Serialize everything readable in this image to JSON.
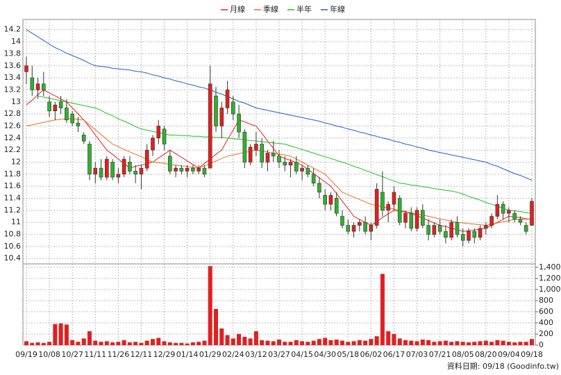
{
  "chart_data": {
    "type": "candlestick",
    "source": "資料日期: 09/18 (Goodinfo.tw)",
    "up_color": "#e02020",
    "down_color": "#30b030",
    "grid": true,
    "ylim": [
      10.31,
      14.37
    ],
    "yticks": [
      10.4,
      10.6,
      10.8,
      11,
      11.2,
      11.4,
      11.6,
      11.8,
      12,
      12.2,
      12.4,
      12.6,
      12.8,
      13,
      13.2,
      13.4,
      13.6,
      13.8,
      14,
      14.2
    ],
    "y2lim": [
      0,
      1460
    ],
    "y2ticks": [
      0,
      200,
      400,
      600,
      800,
      {
        "value": 1000,
        "label": "1,000"
      },
      {
        "value": 1200,
        "label": "1,200"
      },
      {
        "value": 1400,
        "label": "1,400"
      }
    ],
    "x": [
      "09/19",
      null,
      null,
      null,
      "10/08",
      null,
      null,
      null,
      "10/27",
      null,
      null,
      null,
      "11/11",
      null,
      null,
      null,
      "11/26",
      null,
      null,
      null,
      "12/11",
      null,
      null,
      null,
      "12/29",
      null,
      null,
      null,
      "01/14",
      null,
      null,
      null,
      "01/29",
      null,
      null,
      null,
      "02/24",
      null,
      null,
      null,
      "03/12",
      null,
      null,
      null,
      "03/27",
      null,
      null,
      null,
      "04/15",
      null,
      null,
      null,
      "04/30",
      null,
      null,
      null,
      "05/18",
      null,
      null,
      null,
      "06/02",
      null,
      null,
      null,
      "06/17",
      null,
      null,
      null,
      "07/03",
      null,
      null,
      null,
      "07/21",
      null,
      null,
      null,
      "08/05",
      null,
      null,
      null,
      "08/20",
      null,
      null,
      null,
      "09/04",
      null,
      null,
      null,
      "09/18"
    ],
    "ohlc": [
      [
        13.5,
        13.75,
        13.3,
        13.6
      ],
      [
        13.4,
        13.6,
        13.1,
        13.2
      ],
      [
        13.2,
        13.4,
        13.05,
        13.3
      ],
      [
        13.3,
        13.5,
        13.1,
        13.2
      ],
      [
        13.0,
        13.1,
        12.75,
        12.85
      ],
      [
        12.85,
        13.0,
        12.7,
        12.95
      ],
      [
        13.0,
        13.1,
        12.8,
        12.9
      ],
      [
        12.9,
        13.05,
        12.65,
        12.7
      ],
      [
        12.8,
        12.85,
        12.6,
        12.65
      ],
      [
        12.65,
        12.75,
        12.5,
        12.6
      ],
      [
        12.45,
        12.5,
        12.3,
        12.35
      ],
      [
        12.3,
        12.35,
        11.7,
        11.8
      ],
      [
        11.8,
        12.0,
        11.65,
        11.9
      ],
      [
        11.9,
        12.05,
        11.7,
        11.75
      ],
      [
        11.75,
        12.1,
        11.7,
        12.05
      ],
      [
        12.0,
        12.05,
        11.7,
        11.75
      ],
      [
        11.75,
        11.9,
        11.65,
        11.8
      ],
      [
        11.8,
        12.1,
        11.75,
        12.05
      ],
      [
        12.0,
        12.1,
        11.8,
        11.85
      ],
      [
        11.85,
        11.95,
        11.65,
        11.8
      ],
      [
        11.8,
        11.95,
        11.55,
        11.9
      ],
      [
        11.9,
        12.3,
        11.85,
        12.2
      ],
      [
        12.2,
        12.45,
        12.1,
        12.4
      ],
      [
        12.4,
        12.7,
        12.3,
        12.6
      ],
      [
        12.55,
        12.6,
        12.2,
        12.3
      ],
      [
        12.1,
        12.2,
        11.8,
        11.85
      ],
      [
        11.85,
        11.95,
        11.75,
        11.9
      ],
      [
        11.9,
        11.95,
        11.8,
        11.85
      ],
      [
        11.85,
        11.95,
        11.75,
        11.9
      ],
      [
        11.9,
        11.95,
        11.8,
        11.85
      ],
      [
        11.85,
        11.95,
        11.8,
        11.9
      ],
      [
        11.9,
        11.95,
        11.75,
        11.8
      ],
      [
        11.9,
        13.6,
        11.9,
        13.3
      ],
      [
        13.1,
        13.25,
        12.5,
        12.6
      ],
      [
        12.6,
        13.0,
        12.4,
        12.9
      ],
      [
        12.9,
        13.35,
        12.8,
        13.2
      ],
      [
        13.0,
        13.1,
        12.7,
        12.8
      ],
      [
        12.8,
        12.95,
        12.4,
        12.5
      ],
      [
        12.5,
        12.55,
        11.9,
        12.0
      ],
      [
        12.0,
        12.3,
        11.95,
        12.25
      ],
      [
        12.2,
        12.5,
        12.1,
        12.3
      ],
      [
        12.3,
        12.4,
        11.9,
        12.0
      ],
      [
        12.0,
        12.2,
        11.85,
        12.15
      ],
      [
        12.15,
        12.35,
        12.0,
        12.1
      ],
      [
        12.1,
        12.2,
        11.9,
        12.0
      ],
      [
        12.0,
        12.1,
        11.85,
        11.95
      ],
      [
        11.95,
        12.05,
        11.75,
        12.0
      ],
      [
        12.0,
        12.1,
        11.8,
        11.85
      ],
      [
        11.85,
        11.95,
        11.7,
        11.9
      ],
      [
        11.9,
        11.95,
        11.75,
        11.8
      ],
      [
        11.8,
        11.9,
        11.6,
        11.65
      ],
      [
        11.65,
        11.75,
        11.4,
        11.5
      ],
      [
        11.45,
        11.55,
        11.2,
        11.3
      ],
      [
        11.3,
        11.5,
        11.2,
        11.45
      ],
      [
        11.4,
        11.5,
        11.1,
        11.15
      ],
      [
        11.1,
        11.2,
        10.9,
        10.95
      ],
      [
        10.95,
        11.05,
        10.8,
        10.85
      ],
      [
        10.85,
        11.0,
        10.75,
        10.95
      ],
      [
        10.95,
        11.05,
        10.85,
        11.0
      ],
      [
        11.0,
        11.1,
        10.8,
        10.85
      ],
      [
        10.85,
        11.0,
        10.7,
        10.95
      ],
      [
        10.95,
        11.65,
        10.9,
        11.55
      ],
      [
        11.5,
        11.85,
        11.1,
        11.2
      ],
      [
        11.2,
        11.35,
        11.0,
        11.3
      ],
      [
        11.3,
        11.6,
        11.2,
        11.5
      ],
      [
        11.4,
        11.45,
        10.95,
        11.0
      ],
      [
        11.0,
        11.2,
        10.9,
        11.15
      ],
      [
        11.15,
        11.25,
        10.85,
        10.9
      ],
      [
        10.9,
        11.25,
        10.85,
        11.2
      ],
      [
        11.2,
        11.3,
        10.9,
        10.95
      ],
      [
        10.95,
        11.05,
        10.7,
        10.8
      ],
      [
        10.8,
        11.0,
        10.75,
        10.95
      ],
      [
        10.95,
        11.05,
        10.8,
        10.85
      ],
      [
        10.85,
        10.95,
        10.65,
        10.75
      ],
      [
        10.75,
        11.05,
        10.7,
        11.0
      ],
      [
        11.0,
        11.1,
        10.75,
        10.8
      ],
      [
        10.8,
        10.9,
        10.6,
        10.7
      ],
      [
        10.7,
        10.9,
        10.65,
        10.85
      ],
      [
        10.85,
        10.9,
        10.65,
        10.75
      ],
      [
        10.75,
        10.95,
        10.7,
        10.9
      ],
      [
        10.9,
        11.0,
        10.8,
        10.95
      ],
      [
        10.95,
        11.15,
        10.9,
        11.1
      ],
      [
        11.1,
        11.45,
        11.05,
        11.3
      ],
      [
        11.3,
        11.35,
        11.05,
        11.15
      ],
      [
        11.15,
        11.25,
        11.0,
        11.2
      ],
      [
        11.15,
        11.2,
        11.0,
        11.05
      ],
      [
        11.05,
        11.1,
        10.95,
        11.0
      ],
      [
        10.95,
        11.0,
        10.8,
        10.85
      ],
      [
        10.95,
        11.4,
        10.95,
        11.35
      ]
    ],
    "volume": {
      "color": "#e02020",
      "values": [
        70,
        40,
        50,
        40,
        60,
        380,
        390,
        370,
        90,
        60,
        120,
        250,
        80,
        60,
        70,
        50,
        60,
        90,
        50,
        60,
        40,
        80,
        110,
        130,
        70,
        50,
        40,
        40,
        30,
        50,
        60,
        80,
        1420,
        650,
        300,
        180,
        120,
        200,
        150,
        120,
        250,
        90,
        80,
        70,
        100,
        60,
        60,
        90,
        70,
        60,
        80,
        110,
        130,
        90,
        100,
        80,
        60,
        70,
        90,
        80,
        110,
        160,
        1280,
        250,
        200,
        120,
        90,
        80,
        70,
        100,
        90,
        60,
        70,
        80,
        60,
        70,
        60,
        50,
        60,
        70,
        80,
        60,
        90,
        80,
        60,
        50,
        60,
        60,
        110
      ]
    },
    "series": [
      {
        "name": "月線",
        "color": "#e02020",
        "values": [
          12.95,
          13.03,
          13.12,
          13.2,
          13.15,
          13.1,
          13.05,
          13.0,
          12.9,
          12.8,
          12.7,
          12.58,
          12.45,
          12.33,
          12.2,
          12.13,
          12.05,
          11.98,
          11.9,
          11.93,
          11.95,
          11.98,
          12.0,
          12.07,
          12.13,
          12.2,
          12.14,
          12.08,
          12.02,
          11.96,
          11.9,
          11.98,
          12.05,
          12.13,
          12.2,
          12.37,
          12.53,
          12.7,
          12.67,
          12.63,
          12.6,
          12.48,
          12.35,
          12.23,
          12.1,
          12.06,
          12.03,
          11.99,
          11.95,
          11.88,
          11.81,
          11.74,
          11.67,
          11.6,
          11.48,
          11.35,
          11.23,
          11.1,
          11.05,
          11.0,
          10.95,
          11.01,
          11.08,
          11.14,
          11.2,
          11.18,
          11.17,
          11.15,
          11.11,
          11.07,
          11.03,
          10.99,
          10.95,
          10.93,
          10.9,
          10.88,
          10.85,
          10.86,
          10.87,
          10.89,
          10.9,
          10.95,
          11.0,
          11.05,
          11.1,
          11.09,
          11.08,
          11.06,
          11.05
        ]
      },
      {
        "name": "季線",
        "color": "#e87020",
        "values": [
          12.6,
          12.62,
          12.64,
          12.66,
          12.68,
          12.7,
          12.71,
          12.72,
          12.72,
          12.71,
          12.7,
          12.62,
          12.54,
          12.46,
          12.38,
          12.3,
          12.26,
          12.21,
          12.17,
          12.13,
          12.09,
          12.04,
          12.0,
          11.99,
          11.98,
          11.96,
          11.95,
          11.94,
          11.93,
          11.91,
          11.9,
          11.94,
          11.98,
          12.02,
          12.06,
          12.1,
          12.12,
          12.14,
          12.16,
          12.18,
          12.2,
          12.18,
          12.17,
          12.15,
          12.13,
          12.12,
          12.1,
          12.05,
          12.0,
          11.95,
          11.9,
          11.85,
          11.8,
          11.7,
          11.6,
          11.5,
          11.46,
          11.42,
          11.38,
          11.34,
          11.3,
          11.28,
          11.26,
          11.24,
          11.22,
          11.2,
          11.18,
          11.16,
          11.14,
          11.12,
          11.1,
          11.08,
          11.06,
          11.04,
          11.02,
          11.0,
          10.99,
          10.98,
          10.97,
          10.96,
          10.95,
          10.97,
          10.99,
          11.01,
          11.03,
          11.05,
          11.05,
          11.05,
          11.05
        ]
      },
      {
        "name": "半年",
        "color": "#20c020",
        "values": [
          null,
          null,
          13.1,
          13.08,
          13.06,
          13.04,
          13.02,
          13.0,
          12.98,
          12.96,
          12.94,
          12.92,
          12.9,
          12.86,
          12.81,
          12.77,
          12.72,
          12.68,
          12.64,
          12.59,
          12.55,
          12.53,
          12.51,
          12.49,
          12.47,
          12.45,
          12.45,
          12.44,
          12.44,
          12.43,
          12.43,
          12.42,
          12.42,
          12.41,
          12.41,
          12.4,
          12.39,
          12.38,
          12.37,
          12.36,
          12.35,
          12.34,
          12.33,
          12.32,
          12.31,
          12.3,
          12.27,
          12.24,
          12.21,
          12.18,
          12.15,
          12.12,
          12.09,
          12.06,
          12.03,
          12.0,
          11.97,
          11.93,
          11.9,
          11.86,
          11.83,
          11.79,
          11.76,
          11.72,
          11.69,
          11.65,
          11.64,
          11.62,
          11.61,
          11.59,
          11.58,
          11.56,
          11.55,
          11.53,
          11.52,
          11.5,
          11.47,
          11.43,
          11.4,
          11.37,
          11.33,
          11.3,
          11.27,
          11.23,
          11.2,
          11.19,
          11.18,
          11.16,
          11.15
        ]
      },
      {
        "name": "年線",
        "color": "#2060c0",
        "values": [
          14.2,
          14.14,
          14.08,
          14.02,
          13.96,
          13.9,
          13.86,
          13.81,
          13.77,
          13.73,
          13.69,
          13.64,
          13.6,
          13.59,
          13.58,
          13.56,
          13.55,
          13.54,
          13.53,
          13.51,
          13.5,
          13.48,
          13.45,
          13.43,
          13.4,
          13.38,
          13.35,
          13.33,
          13.3,
          13.28,
          13.25,
          13.23,
          13.2,
          13.16,
          13.13,
          13.09,
          13.05,
          13.01,
          12.98,
          12.94,
          12.9,
          12.88,
          12.86,
          12.84,
          12.82,
          12.8,
          12.78,
          12.76,
          12.74,
          12.72,
          12.7,
          12.68,
          12.65,
          12.63,
          12.6,
          12.58,
          12.55,
          12.53,
          12.5,
          12.48,
          12.45,
          12.43,
          12.4,
          12.38,
          12.35,
          12.33,
          12.3,
          12.28,
          12.25,
          12.23,
          12.2,
          12.18,
          12.16,
          12.14,
          12.12,
          12.1,
          12.08,
          12.06,
          12.04,
          12.02,
          12.0,
          11.96,
          11.93,
          11.89,
          11.85,
          11.81,
          11.78,
          11.74,
          11.7
        ]
      }
    ]
  }
}
